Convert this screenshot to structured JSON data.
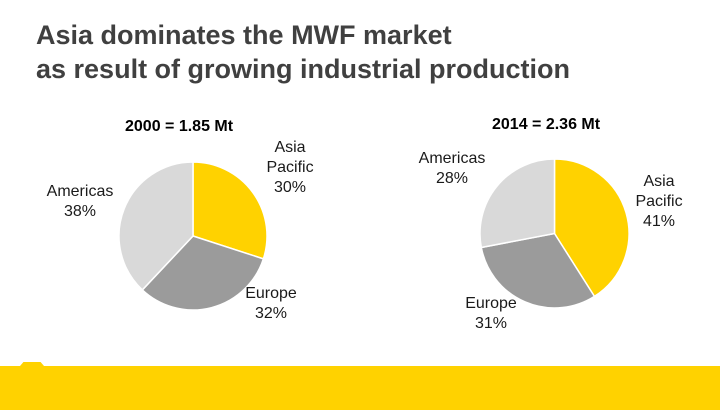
{
  "slide": {
    "title_line1": "Asia dominates the MWF market",
    "title_line2": "as result of growing industrial production"
  },
  "colors": {
    "asia_pacific": "#FFD200",
    "europe": "#9B9B9B",
    "americas": "#D9D9D9",
    "accent_band": "#FFD200"
  },
  "chart_data": [
    {
      "type": "pie",
      "title": "2000 = 1.85 Mt",
      "slices": [
        {
          "label_lines": [
            "Asia",
            "Pacific",
            "30%"
          ],
          "value": 30
        },
        {
          "label_lines": [
            "Europe",
            "32%"
          ],
          "value": 32
        },
        {
          "label_lines": [
            "Americas",
            "38%"
          ],
          "value": 38
        }
      ]
    },
    {
      "type": "pie",
      "title": "2014 = 2.36 Mt",
      "slices": [
        {
          "label_lines": [
            "Asia",
            "Pacific",
            "41%"
          ],
          "value": 41
        },
        {
          "label_lines": [
            "Europe",
            "31%"
          ],
          "value": 31
        },
        {
          "label_lines": [
            "Americas",
            "28%"
          ],
          "value": 28
        }
      ]
    }
  ]
}
